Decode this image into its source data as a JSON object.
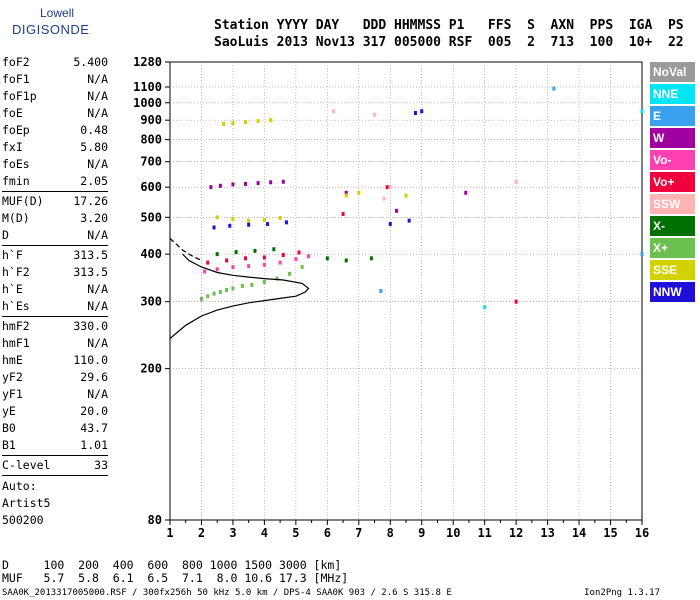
{
  "logo": {
    "top": "Lowell",
    "bottom": "DIGISONDE"
  },
  "header": {
    "line1": "Station YYYY DAY   DDD HHMMSS P1   FFS  S  AXN  PPS  IGA  PS",
    "line2": "SaoLuis 2013 Nov13 317 005000 RSF  005  2  713  100  10+  22"
  },
  "params": [
    {
      "label": "foF2",
      "value": "5.400"
    },
    {
      "label": "foF1",
      "value": "N/A"
    },
    {
      "label": "foF1p",
      "value": "N/A"
    },
    {
      "label": "foE",
      "value": "N/A"
    },
    {
      "label": "foEp",
      "value": "0.48"
    },
    {
      "label": "fxI",
      "value": "5.80"
    },
    {
      "label": "foEs",
      "value": "N/A"
    },
    {
      "label": "fmin",
      "value": "2.05"
    },
    {
      "label": "MUF(D)",
      "value": "17.26"
    },
    {
      "label": "M(D)",
      "value": "3.20"
    },
    {
      "label": "D",
      "value": "N/A"
    },
    {
      "label": "h`F",
      "value": "313.5"
    },
    {
      "label": "h`F2",
      "value": "313.5"
    },
    {
      "label": "h`E",
      "value": "N/A"
    },
    {
      "label": "h`Es",
      "value": "N/A"
    },
    {
      "label": "hmF2",
      "value": "330.0"
    },
    {
      "label": "hmF1",
      "value": "N/A"
    },
    {
      "label": "hmE",
      "value": "110.0"
    },
    {
      "label": "yF2",
      "value": "29.6"
    },
    {
      "label": "yF1",
      "value": "N/A"
    },
    {
      "label": "yE",
      "value": "20.0"
    },
    {
      "label": "B0",
      "value": "43.7"
    },
    {
      "label": "B1",
      "value": "1.01"
    },
    {
      "label": "C-level",
      "value": "33"
    }
  ],
  "notes": [
    "Auto:",
    "Artist5",
    "500200"
  ],
  "legend": [
    {
      "label": "NoVal",
      "color": "#9a9a9a"
    },
    {
      "label": "NNE",
      "color": "#00e5f5"
    },
    {
      "label": "E",
      "color": "#3aa0f0"
    },
    {
      "label": "W",
      "color": "#a000a0"
    },
    {
      "label": "Vo-",
      "color": "#ff40b0"
    },
    {
      "label": "Vo+",
      "color": "#f0003c"
    },
    {
      "label": "SSW",
      "color": "#ffb4b4"
    },
    {
      "label": "X-",
      "color": "#007000"
    },
    {
      "label": "X+",
      "color": "#6cc050"
    },
    {
      "label": "SSE",
      "color": "#d2d200"
    },
    {
      "label": "NNW",
      "color": "#1e10d8"
    }
  ],
  "muf_table": {
    "d_row": "D     100  200  400  600  800 1000 1500 3000 [km]",
    "muf_row": "MUF   5.7  5.8  6.1  6.5  7.1  8.0 10.6 17.3 [MHz]"
  },
  "footer": {
    "left": "SAA0K_2013317005000.RSF / 300fx256h 50 kHz 5.0 km / DPS-4 SAA0K 903 / 2.6 S 315.8 E",
    "right": "Ion2Png 1.3.17"
  },
  "chart_data": {
    "type": "scatter",
    "title": "",
    "xlabel": "",
    "ylabel": "",
    "xlim": [
      1,
      16
    ],
    "ylim": [
      80,
      1280
    ],
    "y_scale": "log",
    "x_ticks": [
      "1",
      "2",
      "3",
      "4",
      "5",
      "6",
      "7",
      "8",
      "9",
      "10",
      "11",
      "12",
      "13",
      "14",
      "15",
      "16"
    ],
    "y_ticks": [
      "80",
      "200",
      "300",
      "400",
      "500",
      "600",
      "700",
      "800",
      "900",
      "1000",
      "1100",
      "1280"
    ],
    "grid": true,
    "series": [
      {
        "name": "X+",
        "values": [
          [
            2.0,
            305
          ],
          [
            2.2,
            310
          ],
          [
            2.4,
            315
          ],
          [
            2.6,
            318
          ],
          [
            2.8,
            322
          ],
          [
            3.0,
            325
          ],
          [
            3.3,
            330
          ],
          [
            3.6,
            332
          ],
          [
            4.0,
            338
          ],
          [
            4.4,
            345
          ],
          [
            4.8,
            355
          ],
          [
            5.2,
            370
          ]
        ]
      },
      {
        "name": "Vo-",
        "values": [
          [
            2.1,
            360
          ],
          [
            2.5,
            365
          ],
          [
            3.0,
            370
          ],
          [
            3.5,
            372
          ],
          [
            4.0,
            375
          ],
          [
            4.5,
            380
          ],
          [
            5.0,
            388
          ],
          [
            5.4,
            395
          ]
        ]
      },
      {
        "name": "Vo+",
        "values": [
          [
            2.2,
            380
          ],
          [
            2.8,
            385
          ],
          [
            3.4,
            390
          ],
          [
            4.0,
            392
          ],
          [
            4.6,
            398
          ],
          [
            5.1,
            404
          ],
          [
            6.5,
            510
          ],
          [
            7.9,
            600
          ],
          [
            12.0,
            300
          ]
        ]
      },
      {
        "name": "W",
        "values": [
          [
            2.3,
            600
          ],
          [
            2.6,
            605
          ],
          [
            3.0,
            610
          ],
          [
            3.4,
            612
          ],
          [
            3.8,
            615
          ],
          [
            4.2,
            618
          ],
          [
            4.6,
            620
          ],
          [
            6.6,
            580
          ],
          [
            8.2,
            520
          ],
          [
            10.4,
            580
          ]
        ]
      },
      {
        "name": "SSE",
        "values": [
          [
            2.7,
            880
          ],
          [
            3.0,
            885
          ],
          [
            3.4,
            890
          ],
          [
            3.8,
            895
          ],
          [
            4.2,
            900
          ],
          [
            2.5,
            500
          ],
          [
            3.0,
            495
          ],
          [
            3.5,
            490
          ],
          [
            4.0,
            492
          ],
          [
            4.5,
            498
          ],
          [
            6.6,
            570
          ],
          [
            7.0,
            580
          ],
          [
            8.5,
            570
          ]
        ]
      },
      {
        "name": "NNW",
        "values": [
          [
            2.4,
            470
          ],
          [
            2.9,
            475
          ],
          [
            3.5,
            478
          ],
          [
            4.1,
            480
          ],
          [
            4.7,
            485
          ],
          [
            8.0,
            480
          ],
          [
            8.6,
            490
          ],
          [
            8.8,
            940
          ],
          [
            9.0,
            950
          ]
        ]
      },
      {
        "name": "SSW",
        "values": [
          [
            6.2,
            950
          ],
          [
            7.5,
            930
          ],
          [
            8.0,
            600
          ],
          [
            7.8,
            560
          ],
          [
            12.0,
            620
          ]
        ]
      },
      {
        "name": "X-",
        "values": [
          [
            2.5,
            400
          ],
          [
            3.1,
            405
          ],
          [
            3.7,
            408
          ],
          [
            4.3,
            412
          ],
          [
            6.0,
            390
          ],
          [
            6.6,
            385
          ],
          [
            7.4,
            390
          ]
        ]
      },
      {
        "name": "E",
        "values": [
          [
            13.2,
            1090
          ],
          [
            7.7,
            320
          ],
          [
            16.0,
            400
          ]
        ]
      },
      {
        "name": "NNE",
        "values": [
          [
            11.0,
            290
          ],
          [
            16.0,
            950
          ]
        ]
      }
    ],
    "curves": {
      "virtual_trace": [
        [
          1.0,
          240
        ],
        [
          1.5,
          260
        ],
        [
          2.0,
          275
        ],
        [
          2.5,
          285
        ],
        [
          3.0,
          292
        ],
        [
          3.5,
          298
        ],
        [
          4.0,
          302
        ],
        [
          4.5,
          306
        ],
        [
          5.0,
          310
        ],
        [
          5.3,
          318
        ],
        [
          5.4,
          325
        ],
        [
          5.2,
          335
        ],
        [
          4.6,
          342
        ],
        [
          4.0,
          345
        ],
        [
          3.5,
          348
        ],
        [
          3.0,
          352
        ],
        [
          2.5,
          358
        ],
        [
          2.0,
          370
        ],
        [
          1.6,
          385
        ],
        [
          1.4,
          400
        ]
      ],
      "true_height": [
        [
          1.0,
          440
        ],
        [
          1.2,
          425
        ],
        [
          1.4,
          410
        ],
        [
          1.6,
          400
        ],
        [
          1.8,
          392
        ],
        [
          2.0,
          385
        ]
      ]
    }
  }
}
